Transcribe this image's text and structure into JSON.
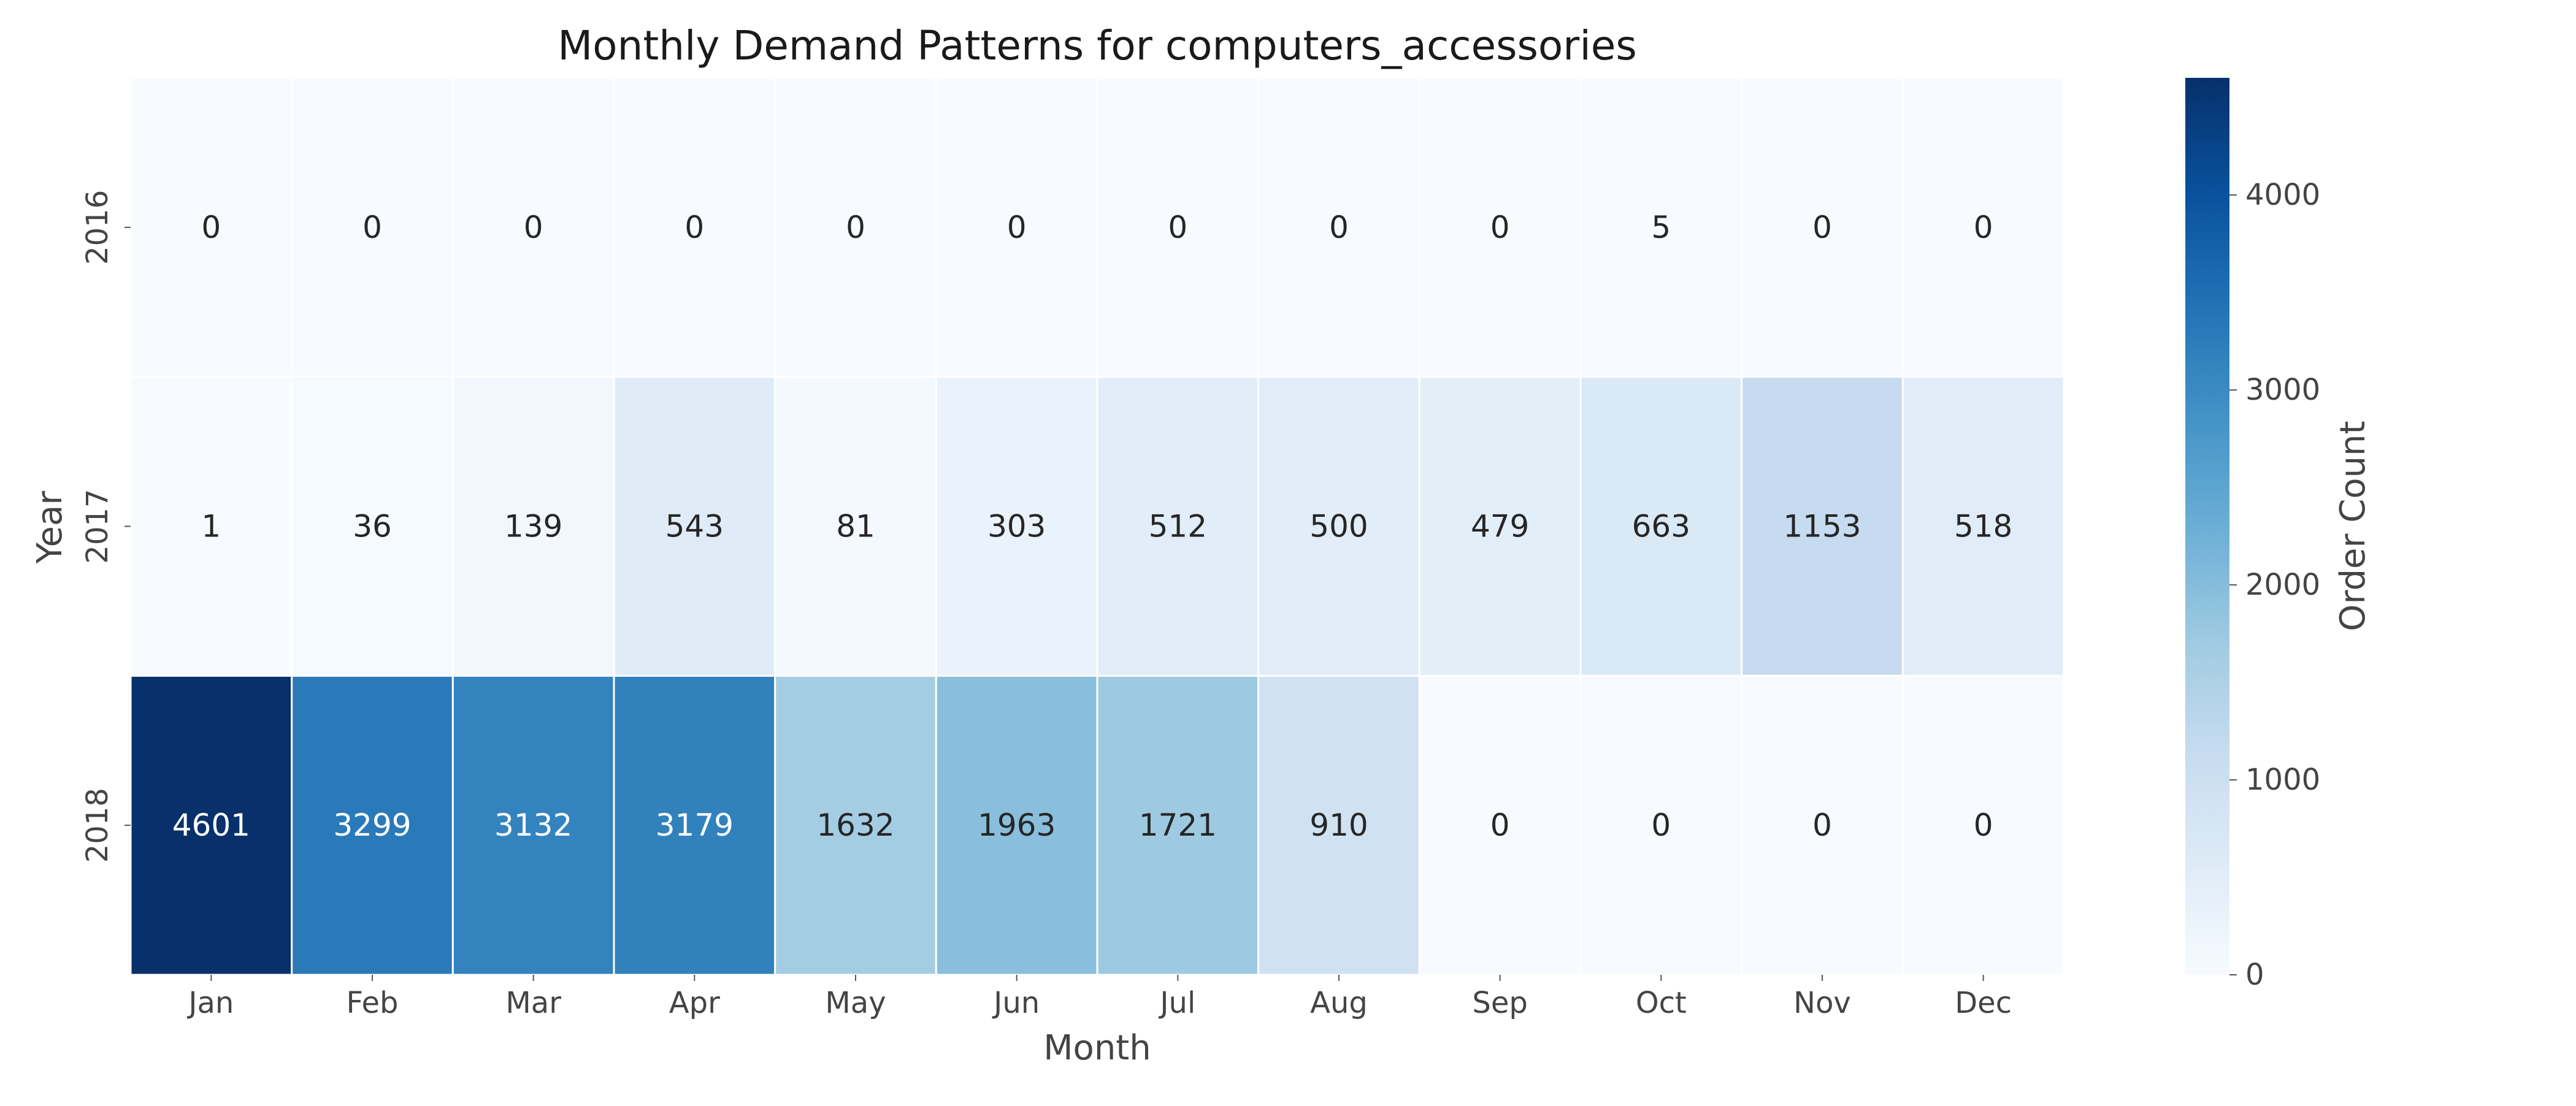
{
  "chart_data": {
    "type": "heatmap",
    "title": "Monthly Demand Patterns for computers_accessories",
    "xlabel": "Month",
    "ylabel": "Year",
    "colorbar_label": "Order Count",
    "colormap": "Blues",
    "color_low": "#f7fbff",
    "color_high": "#08306b",
    "x_categories": [
      "Jan",
      "Feb",
      "Mar",
      "Apr",
      "May",
      "Jun",
      "Jul",
      "Aug",
      "Sep",
      "Oct",
      "Nov",
      "Dec"
    ],
    "y_categories": [
      "2016",
      "2017",
      "2018"
    ],
    "values": [
      [
        0,
        0,
        0,
        0,
        0,
        0,
        0,
        0,
        0,
        5,
        0,
        0
      ],
      [
        1,
        36,
        139,
        543,
        81,
        303,
        512,
        500,
        479,
        663,
        1153,
        518
      ],
      [
        4601,
        3299,
        3132,
        3179,
        1632,
        1963,
        1721,
        910,
        0,
        0,
        0,
        0
      ]
    ],
    "value_range": [
      0,
      4601
    ],
    "colorbar_ticks": [
      0,
      1000,
      2000,
      3000,
      4000
    ],
    "colorbar_tick_labels": [
      "0",
      "1000",
      "2000",
      "3000",
      "4000"
    ],
    "annotated": true,
    "grid": false,
    "legend": "colorbar-right"
  }
}
